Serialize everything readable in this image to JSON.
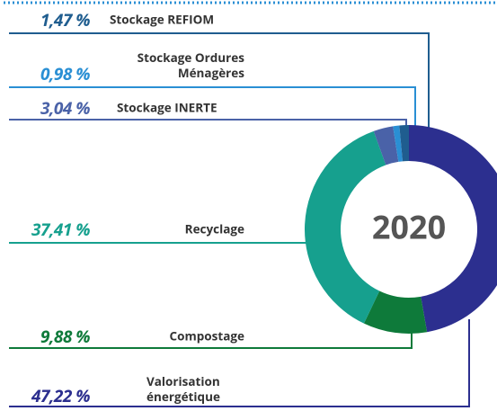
{
  "chart_data": {
    "type": "donut",
    "center_label": "2020",
    "categories": [
      "Stockage REFIOM",
      "Stockage Ordures Ménagères",
      "Stockage INERTE",
      "Recyclage",
      "Compostage",
      "Valorisation énergétique"
    ],
    "values": [
      1.47,
      0.98,
      3.04,
      37.41,
      9.88,
      47.22
    ],
    "value_labels": [
      "1,47 %",
      "0,98 %",
      "3,04 %",
      "37,41 %",
      "9,88 %",
      "47,22 %"
    ],
    "colors": [
      "#1f5d8f",
      "#2a8fd4",
      "#4a62a8",
      "#16a08e",
      "#0e7a3a",
      "#2c2f8f"
    ]
  }
}
